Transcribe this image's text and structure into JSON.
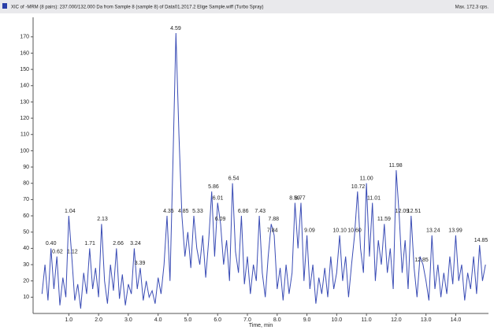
{
  "chart_data": {
    "type": "line",
    "title": "XIC of -MRM (8 pairs): 237.000/132.000 Da from Sample 8 (sample 8) of Data01.2017.2 Elige Sample.wiff (Turbo Spray)",
    "max_label": "Max. 172.3 cps.",
    "xlabel": "Time, min",
    "color": "#3a4cb5",
    "x": [
      0.1,
      0.2,
      0.3,
      0.4,
      0.5,
      0.6,
      0.7,
      0.8,
      0.9,
      1.0,
      1.1,
      1.2,
      1.3,
      1.4,
      1.5,
      1.6,
      1.7,
      1.8,
      1.9,
      2.0,
      2.1,
      2.2,
      2.3,
      2.4,
      2.5,
      2.6,
      2.7,
      2.8,
      2.9,
      3.0,
      3.1,
      3.2,
      3.3,
      3.4,
      3.5,
      3.6,
      3.7,
      3.8,
      3.9,
      4.0,
      4.1,
      4.2,
      4.3,
      4.4,
      4.5,
      4.6,
      4.7,
      4.8,
      4.9,
      5.0,
      5.1,
      5.2,
      5.3,
      5.4,
      5.5,
      5.6,
      5.7,
      5.8,
      5.9,
      6.0,
      6.1,
      6.2,
      6.3,
      6.4,
      6.5,
      6.6,
      6.7,
      6.8,
      6.9,
      7.0,
      7.1,
      7.2,
      7.3,
      7.4,
      7.5,
      7.6,
      7.7,
      7.8,
      7.9,
      8.0,
      8.1,
      8.2,
      8.3,
      8.4,
      8.5,
      8.6,
      8.7,
      8.8,
      8.9,
      9.0,
      9.1,
      9.2,
      9.3,
      9.4,
      9.5,
      9.6,
      9.7,
      9.8,
      9.9,
      10.0,
      10.1,
      10.2,
      10.3,
      10.4,
      10.5,
      10.6,
      10.7,
      10.8,
      10.9,
      11.0,
      11.1,
      11.2,
      11.3,
      11.4,
      11.5,
      11.6,
      11.7,
      11.8,
      11.9,
      12.0,
      12.1,
      12.2,
      12.3,
      12.4,
      12.5,
      12.6,
      12.7,
      12.8,
      12.9,
      13.0,
      13.1,
      13.2,
      13.3,
      13.4,
      13.5,
      13.6,
      13.7,
      13.8,
      13.9,
      14.0,
      14.1,
      14.2,
      14.3,
      14.4,
      14.5,
      14.6,
      14.7,
      14.8,
      14.9,
      15.0
    ],
    "values": [
      12,
      30,
      8,
      40,
      15,
      35,
      5,
      22,
      10,
      60,
      35,
      8,
      18,
      3,
      25,
      12,
      40,
      15,
      28,
      10,
      55,
      20,
      6,
      30,
      14,
      40,
      9,
      24,
      5,
      18,
      12,
      40,
      15,
      28,
      8,
      20,
      10,
      14,
      6,
      22,
      12,
      30,
      60,
      20,
      95,
      172.3,
      110,
      60,
      35,
      50,
      28,
      60,
      40,
      30,
      48,
      22,
      45,
      75,
      35,
      68,
      55,
      30,
      45,
      20,
      80,
      38,
      25,
      60,
      18,
      35,
      12,
      30,
      20,
      60,
      25,
      10,
      35,
      55,
      48,
      15,
      28,
      8,
      30,
      12,
      25,
      68,
      40,
      68,
      20,
      48,
      15,
      30,
      6,
      22,
      12,
      28,
      10,
      35,
      15,
      25,
      48,
      20,
      35,
      10,
      30,
      48,
      75,
      40,
      25,
      80,
      35,
      68,
      20,
      45,
      30,
      55,
      25,
      40,
      15,
      88,
      60,
      25,
      45,
      15,
      60,
      28,
      10,
      35,
      30,
      20,
      8,
      48,
      15,
      30,
      10,
      25,
      12,
      35,
      18,
      48,
      20,
      30,
      8,
      25,
      15,
      35,
      12,
      42,
      20,
      30
    ],
    "xlim": [
      -0.2,
      15.1
    ],
    "ylim": [
      0,
      182
    ],
    "xticks": [
      {
        "value": 1,
        "label": "1.0"
      },
      {
        "value": 2,
        "label": "2.0"
      },
      {
        "value": 3,
        "label": "3.0"
      },
      {
        "value": 4,
        "label": "4.0"
      },
      {
        "value": 5,
        "label": "5.0"
      },
      {
        "value": 6,
        "label": "6.0"
      },
      {
        "value": 7,
        "label": "7.0"
      },
      {
        "value": 8,
        "label": "8.0"
      },
      {
        "value": 9,
        "label": "9.0"
      },
      {
        "value": 10,
        "label": "10.0"
      },
      {
        "value": 11,
        "label": "11.0"
      },
      {
        "value": 12,
        "label": "12.0"
      },
      {
        "value": 13,
        "label": "13.0"
      },
      {
        "value": 14,
        "label": "14.0"
      }
    ],
    "yticks": [
      10,
      20,
      30,
      40,
      50,
      60,
      70,
      80,
      90,
      100,
      110,
      120,
      130,
      140,
      150,
      160,
      170
    ],
    "annotations": [
      {
        "label": "0.40",
        "x": 0.4,
        "y": 40
      },
      {
        "label": "0.62",
        "x": 0.62,
        "y": 35
      },
      {
        "label": "1.04",
        "x": 1.04,
        "y": 60
      },
      {
        "label": "1.12",
        "x": 1.12,
        "y": 35
      },
      {
        "label": "1.71",
        "x": 1.71,
        "y": 40
      },
      {
        "label": "2.13",
        "x": 2.13,
        "y": 55
      },
      {
        "label": "2.66",
        "x": 2.66,
        "y": 40
      },
      {
        "label": "3.24",
        "x": 3.24,
        "y": 40
      },
      {
        "label": "3.39",
        "x": 3.39,
        "y": 28
      },
      {
        "label": "4.35",
        "x": 4.35,
        "y": 60
      },
      {
        "label": "4.59",
        "x": 4.59,
        "y": 172.3
      },
      {
        "label": "4.85",
        "x": 4.85,
        "y": 60
      },
      {
        "label": "5.33",
        "x": 5.33,
        "y": 60
      },
      {
        "label": "5.86",
        "x": 5.86,
        "y": 75
      },
      {
        "label": "6.01",
        "x": 6.01,
        "y": 68
      },
      {
        "label": "6.09",
        "x": 6.09,
        "y": 55
      },
      {
        "label": "6.54",
        "x": 6.54,
        "y": 80
      },
      {
        "label": "6.86",
        "x": 6.86,
        "y": 60
      },
      {
        "label": "7.43",
        "x": 7.43,
        "y": 60
      },
      {
        "label": "7.88",
        "x": 7.88,
        "y": 55
      },
      {
        "label": "7.84",
        "x": 7.84,
        "y": 48
      },
      {
        "label": "8.59",
        "x": 8.59,
        "y": 68
      },
      {
        "label": "8.77",
        "x": 8.77,
        "y": 68
      },
      {
        "label": "9.09",
        "x": 9.09,
        "y": 48
      },
      {
        "label": "10.10",
        "x": 10.1,
        "y": 48
      },
      {
        "label": "10.60",
        "x": 10.6,
        "y": 48
      },
      {
        "label": "10.72",
        "x": 10.72,
        "y": 75
      },
      {
        "label": "11.00",
        "x": 11.0,
        "y": 80
      },
      {
        "label": "11.01",
        "x": 11.25,
        "y": 68
      },
      {
        "label": "11.59",
        "x": 11.59,
        "y": 55
      },
      {
        "label": "11.98",
        "x": 11.98,
        "y": 88
      },
      {
        "label": "12.09",
        "x": 12.2,
        "y": 60
      },
      {
        "label": "12.51",
        "x": 12.6,
        "y": 60
      },
      {
        "label": "12.85",
        "x": 12.85,
        "y": 30
      },
      {
        "label": "13.24",
        "x": 13.24,
        "y": 48
      },
      {
        "label": "13.99",
        "x": 13.99,
        "y": 48
      },
      {
        "label": "14.85",
        "x": 14.85,
        "y": 42
      }
    ]
  }
}
